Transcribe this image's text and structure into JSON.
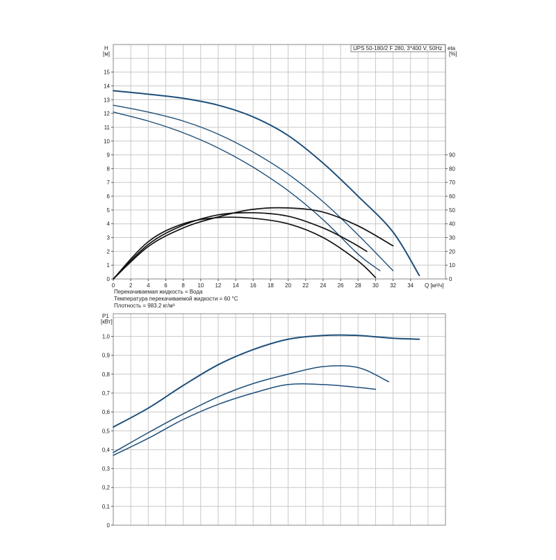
{
  "notes": {
    "medium": "Перекачиваемая жидкость = Вода",
    "temperature": "Температура перекачиваемой жидкости = 60 °C",
    "density": "Плотность = 983.2 кг/м³"
  },
  "chart_data": [
    {
      "type": "line",
      "title": "UPS 50-180/2 F 280, 3*400 V, 50Hz",
      "xlabel": "Q [м³/ч]",
      "ylabel": "H [м]",
      "ylabel_line1": "H",
      "ylabel_line2": "[м]",
      "y2label_line1": "eta",
      "y2label_line2": "[%]",
      "xlim": [
        0,
        38
      ],
      "ylim": [
        0,
        17
      ],
      "x_ticks": [
        0,
        2,
        4,
        6,
        8,
        10,
        12,
        14,
        16,
        18,
        20,
        22,
        24,
        26,
        28,
        30,
        32,
        34
      ],
      "y_ticks": [
        0,
        1,
        2,
        3,
        4,
        5,
        6,
        7,
        8,
        9,
        10,
        11,
        12,
        13,
        14,
        15
      ],
      "y2_ticks": [
        0,
        10,
        20,
        30,
        40,
        50,
        60,
        70,
        80,
        90
      ],
      "y2lim": [
        0,
        170
      ],
      "grid": true,
      "colors": {
        "head": "#1d4f7a",
        "efficiency": "#111111",
        "grid": "#c8c8c8"
      },
      "series": [
        {
          "kind": "head",
          "x": [
            0,
            4,
            8,
            12,
            16,
            20,
            24,
            28,
            32,
            35
          ],
          "y": [
            13.65,
            13.4,
            13.1,
            12.6,
            11.75,
            10.4,
            8.4,
            6.0,
            3.4,
            0.25
          ]
        },
        {
          "kind": "head",
          "x": [
            0,
            4,
            8,
            12,
            16,
            20,
            24,
            28,
            32
          ],
          "y": [
            12.6,
            12.1,
            11.45,
            10.5,
            9.2,
            7.6,
            5.6,
            3.2,
            0.6
          ]
        },
        {
          "kind": "head",
          "x": [
            0,
            4,
            8,
            12,
            16,
            20,
            24,
            28,
            30.5
          ],
          "y": [
            12.1,
            11.45,
            10.6,
            9.5,
            8.1,
            6.4,
            4.3,
            1.8,
            0.6
          ]
        },
        {
          "kind": "efficiency",
          "x": [
            0,
            4,
            8,
            12,
            16,
            20,
            24,
            28,
            32
          ],
          "y": [
            0,
            23.5,
            37,
            45,
            50.5,
            51.5,
            48.5,
            38.5,
            24
          ]
        },
        {
          "kind": "efficiency",
          "x": [
            0,
            4,
            8,
            12,
            16,
            20,
            24,
            27,
            29
          ],
          "y": [
            0,
            25,
            39,
            46.5,
            48,
            45.5,
            37,
            27.5,
            20
          ]
        },
        {
          "kind": "efficiency",
          "x": [
            0,
            4,
            8,
            12,
            16,
            20,
            24,
            28,
            30
          ],
          "y": [
            0,
            27,
            40,
            44.5,
            44,
            40,
            30,
            13,
            1
          ]
        }
      ]
    },
    {
      "type": "line",
      "title": "",
      "xlabel": "",
      "ylabel": "P1 [кВт]",
      "ylabel_line1": "P1",
      "ylabel_line2": "[кВт]",
      "xlim": [
        0,
        38
      ],
      "ylim": [
        0,
        1.12
      ],
      "y_ticks": [
        0,
        0.1,
        0.2,
        0.3,
        0.4,
        0.5,
        0.6,
        0.7,
        0.8,
        0.9,
        1.0
      ],
      "y_tick_labels": [
        "0",
        "0,1",
        "0,2",
        "0,3",
        "0,4",
        "0,5",
        "0,6",
        "0,7",
        "0,8",
        "0,9",
        "1,0"
      ],
      "grid": true,
      "colors": {
        "power": "#1d4f7a"
      },
      "series": [
        {
          "kind": "power",
          "x": [
            0,
            4,
            8,
            12,
            16,
            20,
            24,
            28,
            32,
            35
          ],
          "y": [
            0.52,
            0.62,
            0.74,
            0.85,
            0.93,
            0.985,
            1.005,
            1.005,
            0.99,
            0.985
          ]
        },
        {
          "kind": "power",
          "x": [
            0,
            4,
            8,
            12,
            16,
            20,
            24,
            28,
            31.5
          ],
          "y": [
            0.385,
            0.49,
            0.59,
            0.68,
            0.75,
            0.8,
            0.84,
            0.835,
            0.76
          ]
        },
        {
          "kind": "power",
          "x": [
            0,
            4,
            8,
            12,
            16,
            20,
            24,
            28,
            30
          ],
          "y": [
            0.37,
            0.46,
            0.56,
            0.64,
            0.7,
            0.745,
            0.745,
            0.73,
            0.72
          ]
        }
      ]
    }
  ]
}
